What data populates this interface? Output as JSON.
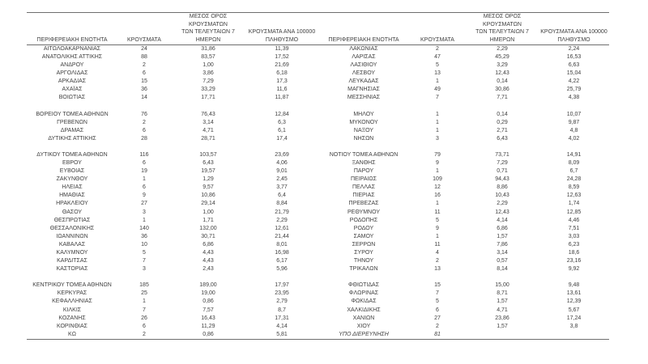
{
  "colors": {
    "text": "#3f3f3f",
    "border": "#6e6e6e",
    "background": "#ffffff"
  },
  "table": {
    "header_labels": {
      "region": "ΠΕΡΙΦΕΡΕΙΑΚΗ ΕΝΟΤΗΤΑ",
      "cases": "ΚΡΟΥΣΜΑΤΑ",
      "avg_7day": "ΜΕΣΟΣ ΟΡΟΣ ΚΡΟΥΣΜΑΤΩΝ\nΤΩΝ ΤΕΛΕΥΤΑΙΩΝ 7\nΗΜΕΡΩΝ",
      "per_100k": "ΚΡΟΥΣΜΑΤΑ ΑΝΑ 100000\nΠΛΗΘΥΣΜΟ"
    },
    "rows": [
      [
        "ΑΙΤΩΛΟΑΚΑΡΝΑΝΙΑΣ",
        "24",
        "31,86",
        "11,39",
        "ΛΑΚΩΝΙΑΣ",
        "2",
        "2,29",
        "2,24"
      ],
      [
        "ΑΝΑΤΟΛΙΚΗΣ ΑΤΤΙΚΗΣ",
        "88",
        "83,57",
        "17,52",
        "ΛΑΡΙΣΑΣ",
        "47",
        "45,29",
        "16,53"
      ],
      [
        "ΑΝΔΡΟΥ",
        "2",
        "1,00",
        "21,69",
        "ΛΑΣΙΘΙΟΥ",
        "5",
        "3,29",
        "6,63"
      ],
      [
        "ΑΡΓΟΛΙΔΑΣ",
        "6",
        "3,86",
        "6,18",
        "ΛΕΣΒΟΥ",
        "13",
        "12,43",
        "15,04"
      ],
      [
        "ΑΡΚΑΔΙΑΣ",
        "15",
        "7,29",
        "17,3",
        "ΛΕΥΚΑΔΑΣ",
        "1",
        "0,14",
        "4,22"
      ],
      [
        "ΑΧΑΪΑΣ",
        "36",
        "33,29",
        "11,6",
        "ΜΑΓΝΗΣΙΑΣ",
        "49",
        "30,86",
        "25,79"
      ],
      [
        "ΒΟΙΩΤΙΑΣ",
        "14",
        "17,71",
        "11,87",
        "ΜΕΣΣΗΝΙΑΣ",
        "7",
        "7,71",
        "4,38"
      ],
      [
        "",
        "",
        "",
        "",
        "",
        "",
        "",
        ""
      ],
      [
        "ΒΟΡΕΙΟΥ ΤΟΜΕΑ ΑΘΗΝΩΝ",
        "76",
        "76,43",
        "12,84",
        "ΜΗΛΟΥ",
        "1",
        "0,14",
        "10,07"
      ],
      [
        "ΓΡΕΒΕΝΩΝ",
        "2",
        "3,14",
        "6,3",
        "ΜΥΚΟΝΟΥ",
        "1",
        "0,29",
        "9,87"
      ],
      [
        "ΔΡΑΜΑΣ",
        "6",
        "4,71",
        "6,1",
        "ΝΑΞΟΥ",
        "1",
        "2,71",
        "4,8"
      ],
      [
        "ΔΥΤΙΚΗΣ ΑΤΤΙΚΗΣ",
        "28",
        "28,71",
        "17,4",
        "ΝΗΣΩΝ",
        "3",
        "6,43",
        "4,02"
      ],
      [
        "",
        "",
        "",
        "",
        "",
        "",
        "",
        ""
      ],
      [
        "ΔΥΤΙΚΟΥ ΤΟΜΕΑ ΑΘΗΝΩΝ",
        "116",
        "103,57",
        "23,69",
        "ΝΟΤΙΟΥ ΤΟΜΕΑ ΑΘΗΝΩΝ",
        "79",
        "73,71",
        "14,91"
      ],
      [
        "ΕΒΡΟΥ",
        "6",
        "6,43",
        "4,06",
        "ΞΑΝΘΗΣ",
        "9",
        "7,29",
        "8,09"
      ],
      [
        "ΕΥΒΟΙΑΣ",
        "19",
        "19,57",
        "9,01",
        "ΠΑΡΟΥ",
        "1",
        "0,71",
        "6,7"
      ],
      [
        "ΖΑΚΥΝΘΟΥ",
        "1",
        "1,29",
        "2,45",
        "ΠΕΙΡΑΙΩΣ",
        "109",
        "94,43",
        "24,28"
      ],
      [
        "ΗΛΕΙΑΣ",
        "6",
        "9,57",
        "3,77",
        "ΠΕΛΛΑΣ",
        "12",
        "8,86",
        "8,59"
      ],
      [
        "ΗΜΑΘΙΑΣ",
        "9",
        "10,86",
        "6,4",
        "ΠΙΕΡΙΑΣ",
        "16",
        "10,43",
        "12,63"
      ],
      [
        "ΗΡΑΚΛΕΙΟΥ",
        "27",
        "29,14",
        "8,84",
        "ΠΡΕΒΕΖΑΣ",
        "1",
        "2,29",
        "1,74"
      ],
      [
        "ΘΑΣΟΥ",
        "3",
        "1,00",
        "21,79",
        "ΡΕΘΥΜΝΟΥ",
        "11",
        "12,43",
        "12,85"
      ],
      [
        "ΘΕΣΠΡΩΤΙΑΣ",
        "1",
        "1,71",
        "2,29",
        "ΡΟΔΟΠΗΣ",
        "5",
        "4,14",
        "4,46"
      ],
      [
        "ΘΕΣΣΑΛΟΝΙΚΗΣ",
        "140",
        "132,00",
        "12,61",
        "ΡΟΔΟΥ",
        "9",
        "6,86",
        "7,51"
      ],
      [
        "ΙΩΑΝΝΙΝΩΝ",
        "36",
        "30,71",
        "21,44",
        "ΣΑΜΟΥ",
        "1",
        "1,57",
        "3,03"
      ],
      [
        "ΚΑΒΑΛΑΣ",
        "10",
        "6,86",
        "8,01",
        "ΣΕΡΡΩΝ",
        "11",
        "7,86",
        "6,23"
      ],
      [
        "ΚΑΛΥΜΝΟΥ",
        "5",
        "4,43",
        "16,98",
        "ΣΥΡΟΥ",
        "4",
        "3,14",
        "18,6"
      ],
      [
        "ΚΑΡΔΙΤΣΑΣ",
        "7",
        "4,43",
        "6,17",
        "ΤΗΝΟΥ",
        "2",
        "0,57",
        "23,16"
      ],
      [
        "ΚΑΣΤΟΡΙΑΣ",
        "3",
        "2,43",
        "5,96",
        "ΤΡΙΚΑΛΩΝ",
        "13",
        "8,14",
        "9,92"
      ],
      [
        "",
        "",
        "",
        "",
        "",
        "",
        "",
        ""
      ],
      [
        "ΚΕΝΤΡΙΚΟΥ ΤΟΜΕΑ ΑΘΗΝΩΝ",
        "185",
        "189,00",
        "17,97",
        "ΦΘΙΩΤΙΔΑΣ",
        "15",
        "15,00",
        "9,48"
      ],
      [
        "ΚΕΡΚΥΡΑΣ",
        "25",
        "19,00",
        "23,95",
        "ΦΛΩΡΙΝΑΣ",
        "7",
        "8,71",
        "13,61"
      ],
      [
        "ΚΕΦΑΛΛΗΝΙΑΣ",
        "1",
        "0,86",
        "2,79",
        "ΦΩΚΙΔΑΣ",
        "5",
        "1,57",
        "12,39"
      ],
      [
        "ΚΙΛΚΙΣ",
        "7",
        "7,57",
        "8,7",
        "ΧΑΛΚΙΔΙΚΗΣ",
        "6",
        "4,71",
        "5,67"
      ],
      [
        "ΚΟΖΑΝΗΣ",
        "26",
        "16,43",
        "17,31",
        "ΧΑΝΙΩΝ",
        "27",
        "23,86",
        "17,24"
      ],
      [
        "ΚΟΡΙΝΘΙΑΣ",
        "6",
        "11,29",
        "4,14",
        "ΧΙΟΥ",
        "2",
        "1,57",
        "3,8"
      ],
      [
        "ΚΩ",
        "2",
        "0,86",
        "5,81",
        "ΥΠΟ ΔΙΕΡΕΥΝΗΣΗ",
        "81",
        "",
        ""
      ]
    ],
    "italic_cells": {
      "row": 35,
      "cols": [
        4,
        5
      ]
    }
  }
}
